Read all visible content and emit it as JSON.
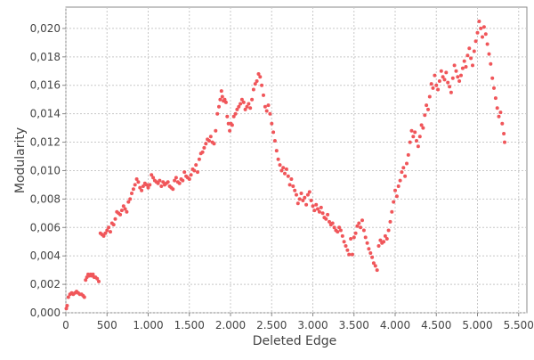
{
  "chart_data": {
    "type": "scatter",
    "title": "",
    "xlabel": "Deleted Edge",
    "ylabel": "Modularity",
    "xlim": [
      0,
      5600
    ],
    "ylim": [
      0,
      0.0215
    ],
    "grid": true,
    "legend": "none",
    "marker_color": "#f0565a",
    "x_ticks": [
      0,
      500,
      1000,
      1500,
      2000,
      2500,
      3000,
      3500,
      4000,
      4500,
      5000,
      5500
    ],
    "x_tick_labels": [
      "0",
      "500",
      "1.000",
      "1.500",
      "2.000",
      "2.500",
      "3.000",
      "3.500",
      "4.000",
      "4.500",
      "5.000",
      "5.500"
    ],
    "y_ticks": [
      0,
      0.002,
      0.004,
      0.006,
      0.008,
      0.01,
      0.012,
      0.014,
      0.016,
      0.018,
      0.02
    ],
    "y_tick_labels": [
      "0,000",
      "0,002",
      "0,004",
      "0,006",
      "0,008",
      "0,010",
      "0,012",
      "0,014",
      "0,016",
      "0,018",
      "0,020"
    ],
    "series": [
      {
        "points": [
          [
            5,
            0.0003
          ],
          [
            15,
            0.0005
          ],
          [
            30,
            0.0011
          ],
          [
            50,
            0.0013
          ],
          [
            70,
            0.0014
          ],
          [
            90,
            0.0013
          ],
          [
            110,
            0.0014
          ],
          [
            130,
            0.0015
          ],
          [
            150,
            0.0014
          ],
          [
            170,
            0.0013
          ],
          [
            190,
            0.0013
          ],
          [
            210,
            0.0012
          ],
          [
            225,
            0.0011
          ],
          [
            240,
            0.0023
          ],
          [
            255,
            0.0025
          ],
          [
            270,
            0.0027
          ],
          [
            285,
            0.0026
          ],
          [
            300,
            0.0027
          ],
          [
            315,
            0.0026
          ],
          [
            330,
            0.0027
          ],
          [
            345,
            0.0025
          ],
          [
            360,
            0.0025
          ],
          [
            380,
            0.0024
          ],
          [
            400,
            0.0022
          ],
          [
            420,
            0.0056
          ],
          [
            440,
            0.0055
          ],
          [
            460,
            0.0054
          ],
          [
            480,
            0.0056
          ],
          [
            500,
            0.0058
          ],
          [
            520,
            0.006
          ],
          [
            540,
            0.0057
          ],
          [
            560,
            0.0063
          ],
          [
            580,
            0.0062
          ],
          [
            600,
            0.0066
          ],
          [
            620,
            0.0071
          ],
          [
            640,
            0.007
          ],
          [
            660,
            0.0069
          ],
          [
            680,
            0.0072
          ],
          [
            700,
            0.0075
          ],
          [
            720,
            0.0073
          ],
          [
            740,
            0.0071
          ],
          [
            760,
            0.0078
          ],
          [
            780,
            0.008
          ],
          [
            800,
            0.0084
          ],
          [
            820,
            0.0087
          ],
          [
            840,
            0.009
          ],
          [
            860,
            0.0094
          ],
          [
            880,
            0.0092
          ],
          [
            900,
            0.0088
          ],
          [
            920,
            0.0086
          ],
          [
            940,
            0.0089
          ],
          [
            960,
            0.0091
          ],
          [
            980,
            0.009
          ],
          [
            1000,
            0.0088
          ],
          [
            1020,
            0.009
          ],
          [
            1040,
            0.0097
          ],
          [
            1060,
            0.0095
          ],
          [
            1080,
            0.0093
          ],
          [
            1100,
            0.0092
          ],
          [
            1120,
            0.0091
          ],
          [
            1140,
            0.0093
          ],
          [
            1160,
            0.0089
          ],
          [
            1180,
            0.0092
          ],
          [
            1200,
            0.009
          ],
          [
            1220,
            0.0091
          ],
          [
            1240,
            0.0092
          ],
          [
            1260,
            0.0089
          ],
          [
            1280,
            0.0088
          ],
          [
            1300,
            0.0087
          ],
          [
            1320,
            0.0093
          ],
          [
            1340,
            0.0095
          ],
          [
            1360,
            0.0092
          ],
          [
            1380,
            0.0091
          ],
          [
            1400,
            0.0094
          ],
          [
            1420,
            0.0093
          ],
          [
            1440,
            0.0099
          ],
          [
            1460,
            0.0096
          ],
          [
            1480,
            0.0095
          ],
          [
            1500,
            0.0094
          ],
          [
            1520,
            0.0097
          ],
          [
            1540,
            0.0101
          ],
          [
            1560,
            0.01
          ],
          [
            1580,
            0.0104
          ],
          [
            1600,
            0.0099
          ],
          [
            1620,
            0.0108
          ],
          [
            1640,
            0.0112
          ],
          [
            1660,
            0.0113
          ],
          [
            1680,
            0.0116
          ],
          [
            1700,
            0.0119
          ],
          [
            1720,
            0.0122
          ],
          [
            1740,
            0.0121
          ],
          [
            1760,
            0.0124
          ],
          [
            1780,
            0.012
          ],
          [
            1800,
            0.0119
          ],
          [
            1820,
            0.0128
          ],
          [
            1840,
            0.014
          ],
          [
            1860,
            0.0145
          ],
          [
            1875,
            0.015
          ],
          [
            1890,
            0.0156
          ],
          [
            1900,
            0.0152
          ],
          [
            1915,
            0.0149
          ],
          [
            1930,
            0.015
          ],
          [
            1945,
            0.0148
          ],
          [
            1960,
            0.0138
          ],
          [
            1975,
            0.0133
          ],
          [
            1990,
            0.0128
          ],
          [
            2005,
            0.0133
          ],
          [
            2020,
            0.0132
          ],
          [
            2040,
            0.0138
          ],
          [
            2060,
            0.014
          ],
          [
            2080,
            0.0143
          ],
          [
            2100,
            0.0145
          ],
          [
            2120,
            0.0147
          ],
          [
            2140,
            0.015
          ],
          [
            2160,
            0.0148
          ],
          [
            2180,
            0.0143
          ],
          [
            2200,
            0.0145
          ],
          [
            2220,
            0.0147
          ],
          [
            2240,
            0.0144
          ],
          [
            2260,
            0.015
          ],
          [
            2280,
            0.0157
          ],
          [
            2300,
            0.0161
          ],
          [
            2320,
            0.0163
          ],
          [
            2340,
            0.0168
          ],
          [
            2360,
            0.0166
          ],
          [
            2380,
            0.016
          ],
          [
            2400,
            0.0153
          ],
          [
            2420,
            0.0145
          ],
          [
            2440,
            0.0142
          ],
          [
            2460,
            0.0146
          ],
          [
            2480,
            0.014
          ],
          [
            2500,
            0.0133
          ],
          [
            2520,
            0.0127
          ],
          [
            2540,
            0.0121
          ],
          [
            2560,
            0.0114
          ],
          [
            2580,
            0.0108
          ],
          [
            2600,
            0.0104
          ],
          [
            2620,
            0.01
          ],
          [
            2640,
            0.0102
          ],
          [
            2660,
            0.0098
          ],
          [
            2680,
            0.0101
          ],
          [
            2700,
            0.0096
          ],
          [
            2720,
            0.009
          ],
          [
            2740,
            0.0094
          ],
          [
            2760,
            0.0089
          ],
          [
            2780,
            0.0086
          ],
          [
            2800,
            0.0083
          ],
          [
            2820,
            0.0077
          ],
          [
            2840,
            0.008
          ],
          [
            2860,
            0.0084
          ],
          [
            2880,
            0.0079
          ],
          [
            2900,
            0.0081
          ],
          [
            2920,
            0.0076
          ],
          [
            2940,
            0.0083
          ],
          [
            2960,
            0.0085
          ],
          [
            2980,
            0.0079
          ],
          [
            3000,
            0.0075
          ],
          [
            3020,
            0.0072
          ],
          [
            3040,
            0.0076
          ],
          [
            3060,
            0.0073
          ],
          [
            3080,
            0.0071
          ],
          [
            3100,
            0.0074
          ],
          [
            3120,
            0.007
          ],
          [
            3140,
            0.0067
          ],
          [
            3160,
            0.0066
          ],
          [
            3180,
            0.0069
          ],
          [
            3200,
            0.0064
          ],
          [
            3220,
            0.0062
          ],
          [
            3240,
            0.0063
          ],
          [
            3260,
            0.006
          ],
          [
            3280,
            0.0058
          ],
          [
            3300,
            0.0057
          ],
          [
            3320,
            0.006
          ],
          [
            3340,
            0.0058
          ],
          [
            3360,
            0.0054
          ],
          [
            3380,
            0.005
          ],
          [
            3400,
            0.0047
          ],
          [
            3420,
            0.0044
          ],
          [
            3440,
            0.0041
          ],
          [
            3460,
            0.0052
          ],
          [
            3480,
            0.0041
          ],
          [
            3500,
            0.0053
          ],
          [
            3520,
            0.0056
          ],
          [
            3540,
            0.0061
          ],
          [
            3560,
            0.0063
          ],
          [
            3580,
            0.006
          ],
          [
            3600,
            0.0065
          ],
          [
            3620,
            0.0058
          ],
          [
            3640,
            0.0053
          ],
          [
            3660,
            0.0049
          ],
          [
            3680,
            0.0045
          ],
          [
            3700,
            0.0042
          ],
          [
            3720,
            0.0039
          ],
          [
            3740,
            0.0035
          ],
          [
            3760,
            0.0033
          ],
          [
            3780,
            0.003
          ],
          [
            3800,
            0.0047
          ],
          [
            3820,
            0.0051
          ],
          [
            3840,
            0.0049
          ],
          [
            3860,
            0.005
          ],
          [
            3880,
            0.0054
          ],
          [
            3900,
            0.0052
          ],
          [
            3920,
            0.0058
          ],
          [
            3940,
            0.0064
          ],
          [
            3960,
            0.0071
          ],
          [
            3980,
            0.0078
          ],
          [
            4000,
            0.0086
          ],
          [
            4020,
            0.0082
          ],
          [
            4040,
            0.0089
          ],
          [
            4060,
            0.0093
          ],
          [
            4080,
            0.0099
          ],
          [
            4100,
            0.0102
          ],
          [
            4120,
            0.0096
          ],
          [
            4140,
            0.0105
          ],
          [
            4160,
            0.0111
          ],
          [
            4180,
            0.012
          ],
          [
            4200,
            0.0128
          ],
          [
            4220,
            0.0124
          ],
          [
            4240,
            0.0127
          ],
          [
            4260,
            0.0121
          ],
          [
            4280,
            0.0117
          ],
          [
            4300,
            0.0124
          ],
          [
            4320,
            0.0132
          ],
          [
            4340,
            0.013
          ],
          [
            4360,
            0.0139
          ],
          [
            4380,
            0.0146
          ],
          [
            4400,
            0.0143
          ],
          [
            4420,
            0.0152
          ],
          [
            4440,
            0.0161
          ],
          [
            4460,
            0.0158
          ],
          [
            4480,
            0.0167
          ],
          [
            4500,
            0.016
          ],
          [
            4520,
            0.0157
          ],
          [
            4540,
            0.0163
          ],
          [
            4560,
            0.017
          ],
          [
            4580,
            0.0166
          ],
          [
            4600,
            0.0164
          ],
          [
            4620,
            0.0169
          ],
          [
            4640,
            0.0162
          ],
          [
            4660,
            0.0159
          ],
          [
            4680,
            0.0155
          ],
          [
            4700,
            0.0165
          ],
          [
            4720,
            0.0174
          ],
          [
            4740,
            0.017
          ],
          [
            4760,
            0.0166
          ],
          [
            4780,
            0.0163
          ],
          [
            4800,
            0.0167
          ],
          [
            4820,
            0.0172
          ],
          [
            4840,
            0.0177
          ],
          [
            4860,
            0.0173
          ],
          [
            4880,
            0.0181
          ],
          [
            4900,
            0.0186
          ],
          [
            4920,
            0.0179
          ],
          [
            4940,
            0.0174
          ],
          [
            4960,
            0.0184
          ],
          [
            4980,
            0.0191
          ],
          [
            5000,
            0.0197
          ],
          [
            5020,
            0.0205
          ],
          [
            5040,
            0.02
          ],
          [
            5060,
            0.0194
          ],
          [
            5080,
            0.0201
          ],
          [
            5100,
            0.0196
          ],
          [
            5120,
            0.0189
          ],
          [
            5140,
            0.0182
          ],
          [
            5160,
            0.0175
          ],
          [
            5180,
            0.0165
          ],
          [
            5200,
            0.0158
          ],
          [
            5220,
            0.0151
          ],
          [
            5240,
            0.0144
          ],
          [
            5260,
            0.0138
          ],
          [
            5280,
            0.0141
          ],
          [
            5300,
            0.0133
          ],
          [
            5320,
            0.0126
          ],
          [
            5330,
            0.012
          ]
        ]
      }
    ]
  }
}
